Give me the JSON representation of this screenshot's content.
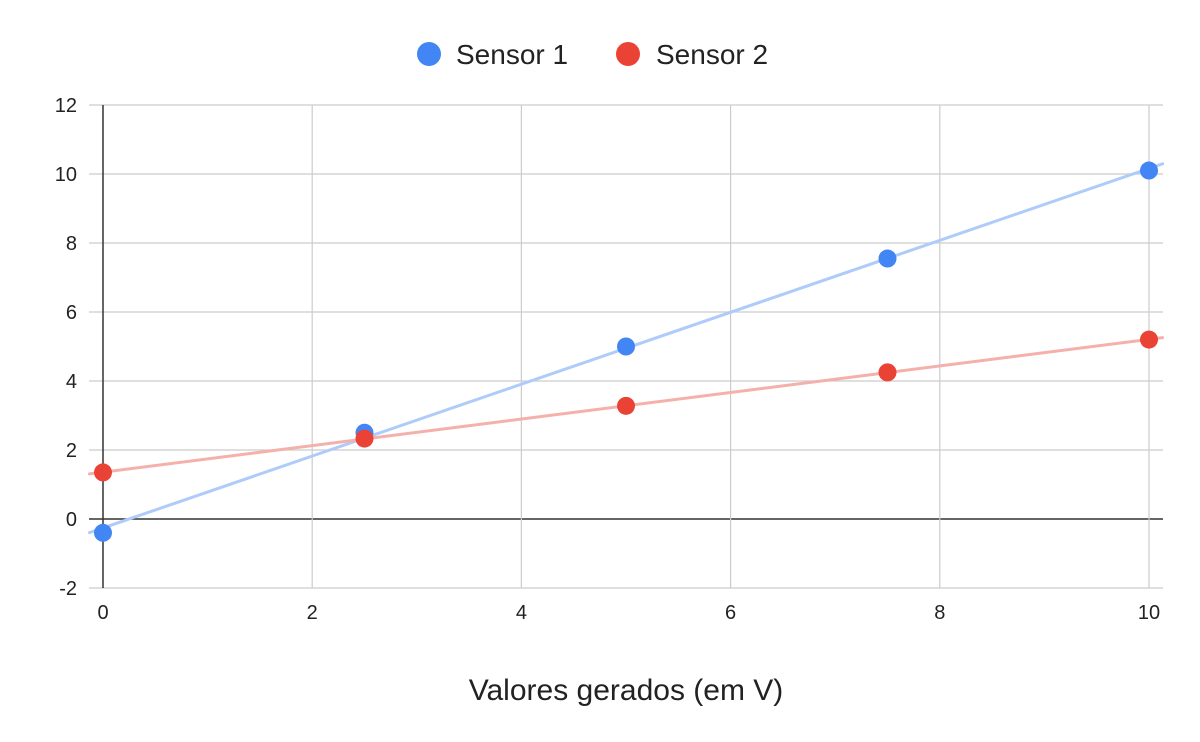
{
  "chart_data": {
    "type": "scatter",
    "title": "",
    "xlabel": "Valores gerados (em V)",
    "ylabel": "",
    "xlim": [
      0,
      10
    ],
    "ylim": [
      -2,
      12
    ],
    "x_ticks": [
      0,
      2,
      4,
      6,
      8,
      10
    ],
    "y_ticks": [
      -2,
      0,
      2,
      4,
      6,
      8,
      10,
      12
    ],
    "grid": true,
    "legend_position": "top",
    "trendlines": true,
    "series": [
      {
        "name": "Sensor 1",
        "color": "#4285f4",
        "trend_color": "#aecbfa",
        "points": [
          {
            "x": 0,
            "y": -0.4
          },
          {
            "x": 2.5,
            "y": 2.5
          },
          {
            "x": 5,
            "y": 5.0
          },
          {
            "x": 7.5,
            "y": 7.55
          },
          {
            "x": 10,
            "y": 10.1
          }
        ]
      },
      {
        "name": "Sensor 2",
        "color": "#ea4335",
        "trend_color": "#f4b0aa",
        "points": [
          {
            "x": 0,
            "y": 1.35
          },
          {
            "x": 2.5,
            "y": 2.33
          },
          {
            "x": 5,
            "y": 3.28
          },
          {
            "x": 7.5,
            "y": 4.25
          },
          {
            "x": 10,
            "y": 5.2
          }
        ]
      }
    ]
  }
}
